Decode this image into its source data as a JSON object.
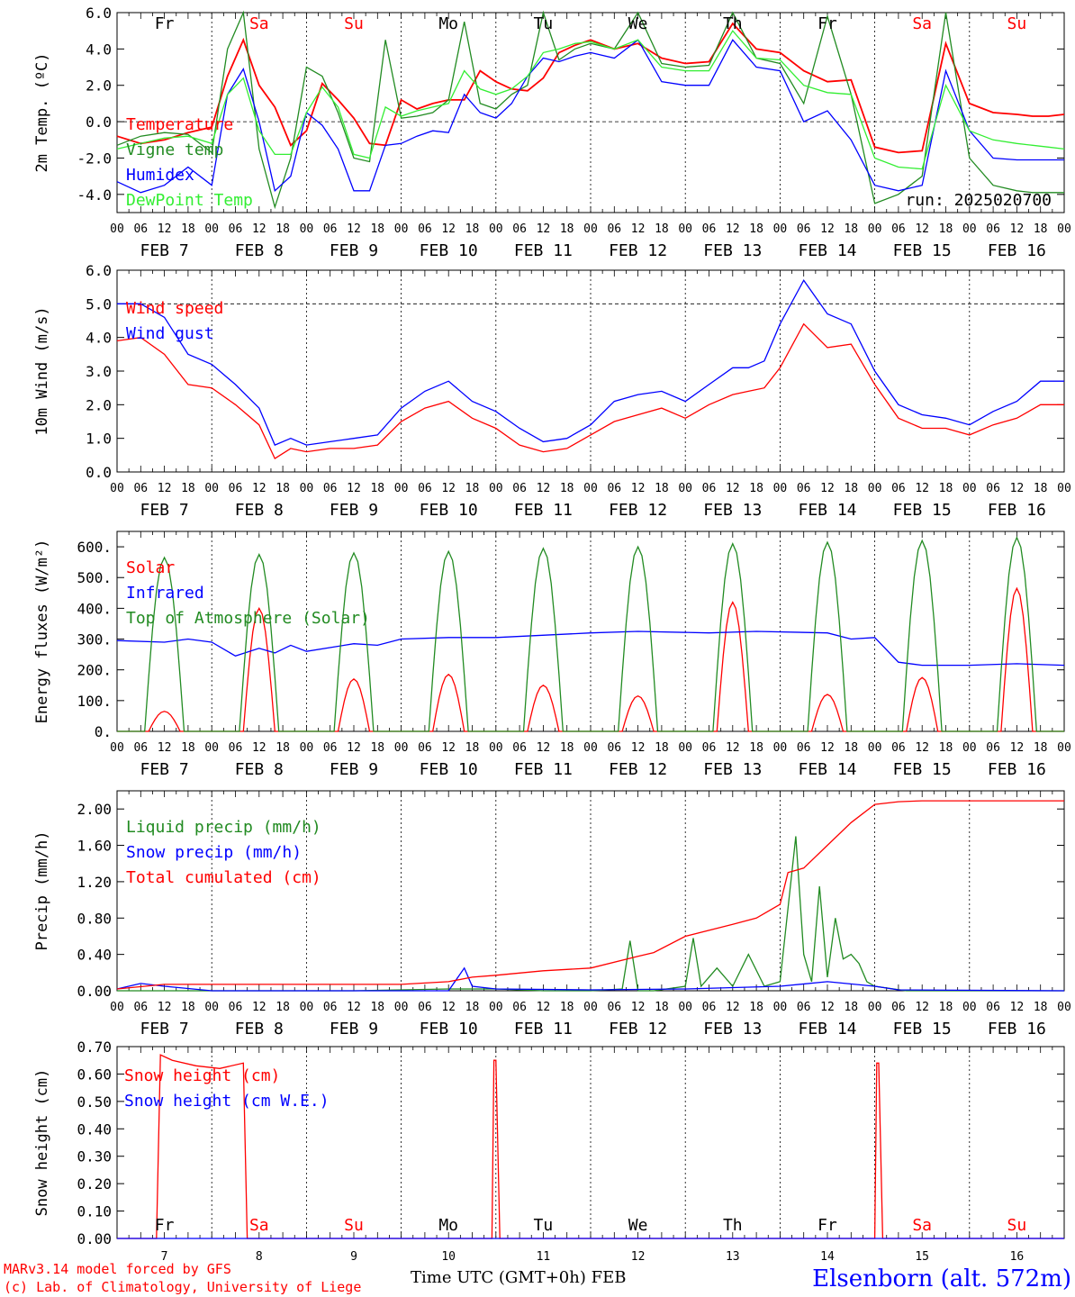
{
  "day_names": [
    "Fr",
    "Sa",
    "Su",
    "Mo",
    "Tu",
    "We",
    "Th",
    "Fr",
    "Sa",
    "Su"
  ],
  "weekend_flags": [
    false,
    true,
    true,
    false,
    false,
    false,
    false,
    false,
    true,
    true
  ],
  "hour_ticks": [
    "00",
    "06",
    "12",
    "18"
  ],
  "date_labels": [
    "FEB  7",
    "FEB  8",
    "FEB  9",
    "FEB 10",
    "FEB 11",
    "FEB 12",
    "FEB 13",
    "FEB 14",
    "FEB 15",
    "FEB 16"
  ],
  "day_numbers": [
    "7",
    "8",
    "9",
    "10",
    "11",
    "12",
    "13",
    "14",
    "15",
    "16"
  ],
  "footer": {
    "model": "MARv3.14 model forced by GFS",
    "lab": "(c) Lab. of Climatology, University of Liege",
    "xlabel": "Time UTC (GMT+0h) FEB",
    "station": "Elsenborn (alt. 572m)"
  },
  "colors": {
    "red": "#ff0000",
    "green": "#228b22",
    "blue": "#0000ff",
    "lightgreen": "#33ee33",
    "dayblue": "#ff0000"
  },
  "chart_data": [
    {
      "type": "line",
      "ylabel": "2m Temp. (ºC)",
      "ylim": [
        -5.0,
        6.0
      ],
      "yticks": [
        "-4.0",
        "-2.0",
        "0.0",
        "2.0",
        "4.0",
        "6.0"
      ],
      "ytick_values": [
        -4,
        -2,
        0,
        2,
        4,
        6
      ],
      "zero_line": 0,
      "annotation": "run: 2025020700",
      "x_unit": "hours since FEB 7 00 UTC",
      "legend_position": "top-left",
      "series": [
        {
          "name": "Temperature",
          "color": "red",
          "x": [
            0,
            6,
            12,
            18,
            24,
            28,
            32,
            36,
            40,
            44,
            48,
            52,
            56,
            60,
            64,
            68,
            72,
            76,
            80,
            84,
            88,
            92,
            96,
            100,
            104,
            108,
            112,
            116,
            120,
            126,
            132,
            138,
            144,
            150,
            156,
            162,
            168,
            174,
            180,
            186,
            192,
            198,
            204,
            210,
            216,
            222,
            228,
            232,
            236,
            240
          ],
          "y": [
            -0.8,
            -1.2,
            -1.0,
            -0.6,
            -0.3,
            2.5,
            4.5,
            2.0,
            0.8,
            -1.3,
            -0.5,
            2.1,
            1.2,
            0.2,
            -1.2,
            -1.3,
            1.2,
            0.7,
            1.0,
            1.2,
            1.2,
            2.8,
            2.2,
            1.8,
            1.7,
            2.4,
            3.8,
            4.2,
            4.5,
            4.0,
            4.3,
            3.5,
            3.2,
            3.3,
            5.4,
            4.0,
            3.8,
            2.8,
            2.2,
            2.3,
            -1.4,
            -1.7,
            -1.6,
            4.3,
            1.0,
            0.5,
            0.4,
            0.3,
            0.3,
            0.4
          ]
        },
        {
          "name": "Vigne temp",
          "color": "green",
          "x": [
            0,
            6,
            12,
            18,
            24,
            28,
            32,
            36,
            40,
            44,
            48,
            52,
            56,
            60,
            64,
            68,
            72,
            76,
            80,
            84,
            88,
            92,
            96,
            100,
            104,
            108,
            112,
            116,
            120,
            126,
            132,
            138,
            144,
            150,
            156,
            162,
            168,
            174,
            180,
            186,
            192,
            198,
            204,
            210,
            216,
            222,
            228,
            232,
            236,
            240
          ],
          "y": [
            -1.3,
            -0.8,
            -0.6,
            -0.7,
            -1.7,
            4.0,
            6.0,
            -1.5,
            -4.7,
            -2.0,
            3.0,
            2.5,
            0.5,
            -2.0,
            -2.2,
            4.5,
            0.2,
            0.3,
            0.5,
            1.2,
            5.5,
            1.0,
            0.7,
            1.5,
            2.0,
            6.5,
            3.4,
            4.0,
            4.3,
            4.0,
            6.0,
            3.2,
            3.0,
            3.1,
            6.2,
            3.5,
            3.2,
            1.0,
            5.8,
            1.5,
            -4.5,
            -4.0,
            -3.0,
            6.0,
            -2.0,
            -3.5,
            -3.8,
            -3.9,
            -3.9,
            -3.9
          ]
        },
        {
          "name": "Humidex",
          "color": "blue",
          "x": [
            0,
            6,
            12,
            18,
            24,
            28,
            32,
            36,
            40,
            44,
            48,
            52,
            56,
            60,
            64,
            68,
            72,
            76,
            80,
            84,
            88,
            92,
            96,
            100,
            104,
            108,
            112,
            116,
            120,
            126,
            132,
            138,
            144,
            150,
            156,
            162,
            168,
            174,
            180,
            186,
            192,
            198,
            204,
            210,
            216,
            222,
            228,
            232,
            236,
            240
          ],
          "y": [
            -3.3,
            -3.9,
            -3.5,
            -2.5,
            -3.5,
            1.5,
            2.9,
            0.0,
            -3.8,
            -3.0,
            0.5,
            -0.2,
            -1.5,
            -3.8,
            -3.8,
            -1.3,
            -1.2,
            -0.8,
            -0.5,
            -0.6,
            1.5,
            0.5,
            0.2,
            1.0,
            2.5,
            3.5,
            3.3,
            3.6,
            3.8,
            3.5,
            4.5,
            2.2,
            2.0,
            2.0,
            4.5,
            3.0,
            2.8,
            0.0,
            0.6,
            -1.0,
            -3.5,
            -3.8,
            -3.5,
            2.8,
            -0.5,
            -2.0,
            -2.1,
            -2.1,
            -2.1,
            -2.1
          ]
        },
        {
          "name": "DewPoint Temp",
          "color": "lightgreen",
          "x": [
            0,
            6,
            12,
            18,
            24,
            28,
            32,
            36,
            40,
            44,
            48,
            52,
            56,
            60,
            64,
            68,
            72,
            76,
            80,
            84,
            88,
            92,
            96,
            100,
            104,
            108,
            112,
            116,
            120,
            126,
            132,
            138,
            144,
            150,
            156,
            162,
            168,
            174,
            180,
            186,
            192,
            198,
            204,
            210,
            216,
            222,
            228,
            232,
            236,
            240
          ],
          "y": [
            -1.5,
            -1.2,
            -0.9,
            -0.8,
            -1.2,
            1.5,
            2.4,
            -0.5,
            -1.8,
            -1.8,
            0.5,
            1.9,
            0.8,
            -1.8,
            -2.0,
            0.8,
            0.3,
            0.6,
            0.8,
            1.0,
            2.8,
            1.8,
            1.5,
            1.8,
            2.5,
            3.8,
            4.0,
            4.3,
            4.4,
            4.0,
            4.5,
            3.0,
            2.8,
            2.8,
            5.0,
            3.5,
            3.4,
            2.0,
            1.6,
            1.5,
            -2.0,
            -2.5,
            -2.6,
            2.0,
            -0.5,
            -1.0,
            -1.2,
            -1.3,
            -1.4,
            -1.5
          ]
        }
      ]
    },
    {
      "type": "line",
      "ylabel": "10m Wind (m/s)",
      "ylim": [
        0.0,
        6.0
      ],
      "yticks": [
        "0.0",
        "1.0",
        "2.0",
        "3.0",
        "4.0",
        "5.0",
        "6.0"
      ],
      "ytick_values": [
        0,
        1,
        2,
        3,
        4,
        5,
        6
      ],
      "ref_line": 5.0,
      "legend_position": "top-left",
      "series": [
        {
          "name": "Wind speed",
          "color": "red",
          "x": [
            0,
            6,
            12,
            18,
            24,
            30,
            36,
            40,
            44,
            48,
            54,
            60,
            66,
            72,
            78,
            84,
            90,
            96,
            102,
            108,
            114,
            120,
            126,
            132,
            138,
            144,
            150,
            156,
            160,
            164,
            168,
            174,
            180,
            186,
            192,
            198,
            204,
            210,
            216,
            222,
            228,
            234,
            240
          ],
          "y": [
            3.9,
            4.0,
            3.5,
            2.6,
            2.5,
            2.0,
            1.4,
            0.4,
            0.7,
            0.6,
            0.7,
            0.7,
            0.8,
            1.5,
            1.9,
            2.1,
            1.6,
            1.3,
            0.8,
            0.6,
            0.7,
            1.1,
            1.5,
            1.7,
            1.9,
            1.6,
            2.0,
            2.3,
            2.4,
            2.5,
            3.1,
            4.4,
            3.7,
            3.8,
            2.6,
            1.6,
            1.3,
            1.3,
            1.1,
            1.4,
            1.6,
            2.0,
            2.0
          ]
        },
        {
          "name": "Wind gust",
          "color": "blue",
          "x": [
            0,
            6,
            12,
            18,
            24,
            30,
            36,
            40,
            44,
            48,
            54,
            60,
            66,
            72,
            78,
            84,
            90,
            96,
            102,
            108,
            114,
            120,
            126,
            132,
            138,
            144,
            150,
            156,
            160,
            164,
            168,
            174,
            180,
            186,
            192,
            198,
            204,
            210,
            216,
            222,
            228,
            234,
            240
          ],
          "y": [
            5.0,
            5.0,
            4.6,
            3.5,
            3.2,
            2.6,
            1.9,
            0.8,
            1.0,
            0.8,
            0.9,
            1.0,
            1.1,
            1.9,
            2.4,
            2.7,
            2.1,
            1.8,
            1.3,
            0.9,
            1.0,
            1.4,
            2.1,
            2.3,
            2.4,
            2.1,
            2.6,
            3.1,
            3.1,
            3.3,
            4.4,
            5.7,
            4.7,
            4.4,
            3.0,
            2.0,
            1.7,
            1.6,
            1.4,
            1.8,
            2.1,
            2.7,
            2.7
          ]
        }
      ]
    },
    {
      "type": "line",
      "ylabel": "Energy fluxes (W/m²)",
      "ylim": [
        0,
        650
      ],
      "yticks": [
        "0.",
        "100.",
        "200.",
        "300.",
        "400.",
        "500.",
        "600."
      ],
      "ytick_values": [
        0,
        100,
        200,
        300,
        400,
        500,
        600
      ],
      "legend_position": "top-left",
      "series": [
        {
          "name": "Solar",
          "color": "red",
          "peaks": [
            65,
            400,
            170,
            185,
            150,
            115,
            420,
            120,
            175,
            465
          ]
        },
        {
          "name": "Infrared",
          "color": "blue",
          "x": [
            0,
            12,
            18,
            24,
            30,
            36,
            40,
            44,
            48,
            60,
            66,
            72,
            84,
            96,
            120,
            132,
            150,
            162,
            180,
            186,
            192,
            198,
            204,
            216,
            228,
            240
          ],
          "y": [
            295,
            290,
            300,
            290,
            245,
            270,
            255,
            280,
            260,
            285,
            280,
            300,
            305,
            305,
            320,
            325,
            320,
            325,
            320,
            300,
            305,
            225,
            215,
            215,
            220,
            215
          ]
        },
        {
          "name": "Top of Atmosphere (Solar)",
          "color": "green",
          "peaks": [
            565,
            575,
            580,
            585,
            595,
            600,
            610,
            615,
            620,
            630
          ]
        }
      ]
    },
    {
      "type": "line",
      "ylabel": "Precip (mm/h)",
      "ylim": [
        0.0,
        2.2
      ],
      "yticks": [
        "0.00",
        "0.40",
        "0.80",
        "1.20",
        "1.60",
        "2.00"
      ],
      "ytick_values": [
        0,
        0.4,
        0.8,
        1.2,
        1.6,
        2.0
      ],
      "legend_position": "top-left",
      "series": [
        {
          "name": "Liquid precip (mm/h)",
          "color": "green",
          "x": [
            0,
            60,
            84,
            96,
            108,
            120,
            128,
            130,
            132,
            136,
            144,
            146,
            148,
            152,
            156,
            160,
            164,
            168,
            172,
            174,
            176,
            178,
            180,
            182,
            184,
            186,
            188,
            190,
            192,
            200,
            240
          ],
          "y": [
            0,
            0,
            0.02,
            0.02,
            0,
            0,
            0.02,
            0.55,
            0,
            0,
            0.05,
            0.58,
            0.05,
            0.25,
            0.05,
            0.4,
            0.05,
            0.1,
            1.7,
            0.4,
            0.1,
            1.15,
            0.15,
            0.8,
            0.35,
            0.4,
            0.3,
            0.1,
            0.05,
            0,
            0
          ]
        },
        {
          "name": "Snow precip (mm/h)",
          "color": "blue",
          "x": [
            0,
            6,
            12,
            24,
            84,
            88,
            90,
            96,
            120,
            144,
            168,
            180,
            192,
            198,
            240
          ],
          "y": [
            0.02,
            0.08,
            0.05,
            0,
            0,
            0.25,
            0.05,
            0.02,
            0.01,
            0.02,
            0.05,
            0.1,
            0.05,
            0.01,
            0
          ]
        },
        {
          "name": "Total cumulated (cm)",
          "color": "red",
          "x": [
            0,
            12,
            24,
            48,
            72,
            84,
            90,
            96,
            108,
            120,
            132,
            136,
            144,
            156,
            162,
            168,
            170,
            174,
            180,
            186,
            192,
            198,
            204,
            216,
            240
          ],
          "y": [
            0.02,
            0.07,
            0.07,
            0.07,
            0.07,
            0.1,
            0.15,
            0.17,
            0.22,
            0.25,
            0.38,
            0.42,
            0.6,
            0.73,
            0.8,
            0.95,
            1.3,
            1.35,
            1.6,
            1.85,
            2.05,
            2.08,
            2.09,
            2.09,
            2.09
          ]
        }
      ]
    },
    {
      "type": "line",
      "ylabel": "Snow height (cm)",
      "ylim": [
        0.0,
        0.7
      ],
      "yticks": [
        "0.00",
        "0.10",
        "0.20",
        "0.30",
        "0.40",
        "0.50",
        "0.60",
        "0.70"
      ],
      "ytick_values": [
        0,
        0.1,
        0.2,
        0.3,
        0.4,
        0.5,
        0.6,
        0.7
      ],
      "legend_position": "top-left",
      "series": [
        {
          "name": "Snow height (cm)",
          "color": "red",
          "x": [
            0,
            10,
            11,
            14,
            20,
            26,
            32,
            33,
            34,
            95,
            95.5,
            96,
            97,
            192,
            192.5,
            193,
            194,
            240
          ],
          "y": [
            0,
            0,
            0.67,
            0.65,
            0.63,
            0.62,
            0.64,
            0.0,
            0,
            0,
            0.65,
            0.65,
            0,
            0,
            0.64,
            0.64,
            0,
            0
          ]
        },
        {
          "name": "Snow height (cm W.E.)",
          "color": "blue",
          "x": [
            0,
            240
          ],
          "y": [
            0,
            0
          ]
        }
      ]
    }
  ]
}
